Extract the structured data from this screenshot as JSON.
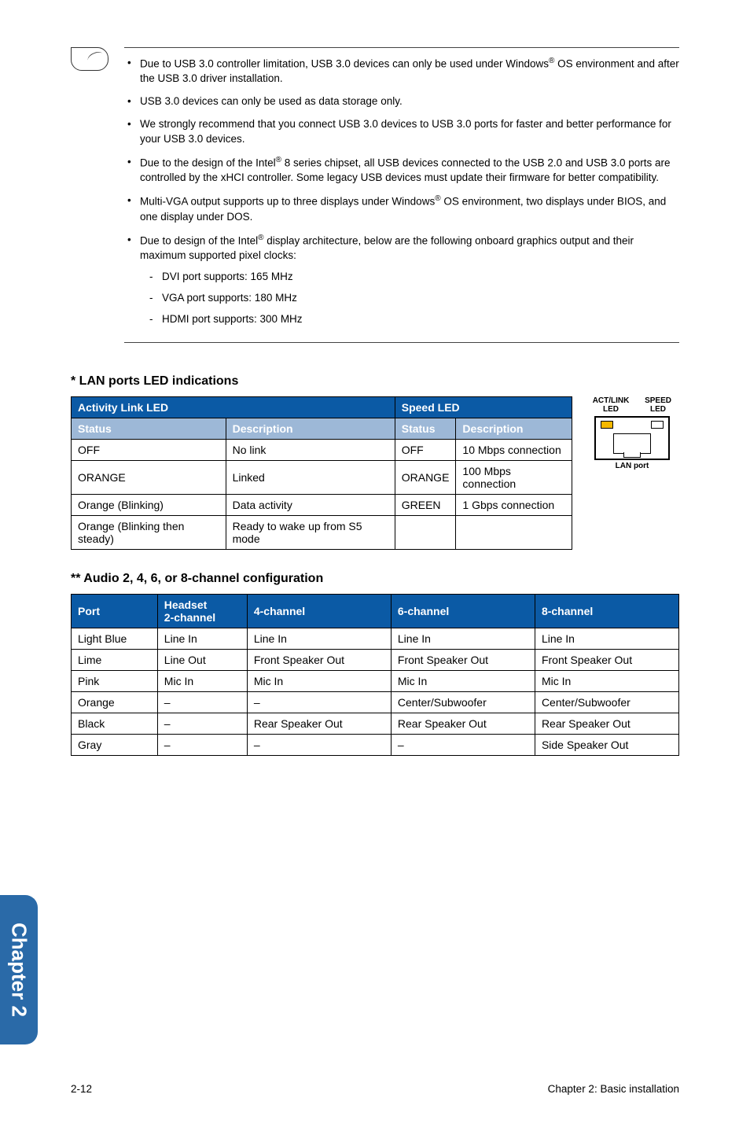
{
  "notes": [
    {
      "html": "Due to USB 3.0 controller limitation, USB 3.0 devices can only be used under Windows<span class='sup'>®</span> OS environment and after the USB 3.0 driver installation."
    },
    {
      "html": "USB 3.0 devices can only be used as data storage only."
    },
    {
      "html": "We strongly recommend that you connect USB 3.0 devices to USB 3.0 ports for faster and better performance for your USB 3.0 devices."
    },
    {
      "html": "Due to the design of the Intel<span class='sup'>®</span> 8 series chipset, all USB devices connected to the USB 2.0 and USB 3.0 ports are controlled by the xHCI controller. Some legacy USB devices must update their firmware for better compatibility."
    },
    {
      "html": "Multi-VGA output supports up to three displays under Windows<span class='sup'>®</span> OS environment, two displays under BIOS, and one display under DOS."
    },
    {
      "html": "Due to design of the Intel<span class='sup'>®</span> display architecture, below are the following onboard graphics output and their maximum supported pixel clocks:",
      "subs": [
        "DVI port supports: 165 MHz",
        "VGA port supports: 180 MHz",
        "HDMI port supports: 300 MHz"
      ]
    }
  ],
  "lanTitle": "* LAN ports LED indications",
  "lanHeaders": {
    "act": "Activity Link LED",
    "spd": "Speed LED",
    "status": "Status",
    "desc": "Description"
  },
  "lanRows": [
    {
      "s1": "OFF",
      "d1": "No link",
      "s2": "OFF",
      "d2": "10 Mbps connection"
    },
    {
      "s1": "ORANGE",
      "d1": "Linked",
      "s2": "ORANGE",
      "d2": "100 Mbps connection"
    },
    {
      "s1": "Orange (Blinking)",
      "d1": "Data activity",
      "s2": "GREEN",
      "d2": "1 Gbps connection"
    },
    {
      "s1": "Orange (Blinking then steady)",
      "d1": "Ready to wake up from S5 mode",
      "s2": "",
      "d2": ""
    }
  ],
  "lanDiagram": {
    "leftLabel": "ACT/LINK LED",
    "rightLabel": "SPEED LED",
    "portLabel": "LAN port"
  },
  "audioTitle": "** Audio 2, 4, 6, or 8-channel configuration",
  "audioHeaders": [
    "Port",
    "Headset 2-channel",
    "4-channel",
    "6-channel",
    "8-channel"
  ],
  "audioRows": [
    [
      "Light Blue",
      "Line In",
      "Line In",
      "Line In",
      "Line In"
    ],
    [
      "Lime",
      "Line Out",
      "Front Speaker Out",
      "Front Speaker Out",
      "Front Speaker Out"
    ],
    [
      "Pink",
      "Mic In",
      "Mic In",
      "Mic In",
      "Mic In"
    ],
    [
      "Orange",
      "–",
      "–",
      "Center/Subwoofer",
      "Center/Subwoofer"
    ],
    [
      "Black",
      "–",
      "Rear Speaker Out",
      "Rear Speaker Out",
      "Rear Speaker Out"
    ],
    [
      "Gray",
      "–",
      "–",
      "–",
      "Side Speaker Out"
    ]
  ],
  "sideTab": "Chapter 2",
  "footer": {
    "left": "2-12",
    "right": "Chapter 2: Basic installation"
  },
  "colors": {
    "hdr1": "#0b5aa5",
    "hdr2": "#9db8d7",
    "tab": "#2a6aa8"
  }
}
